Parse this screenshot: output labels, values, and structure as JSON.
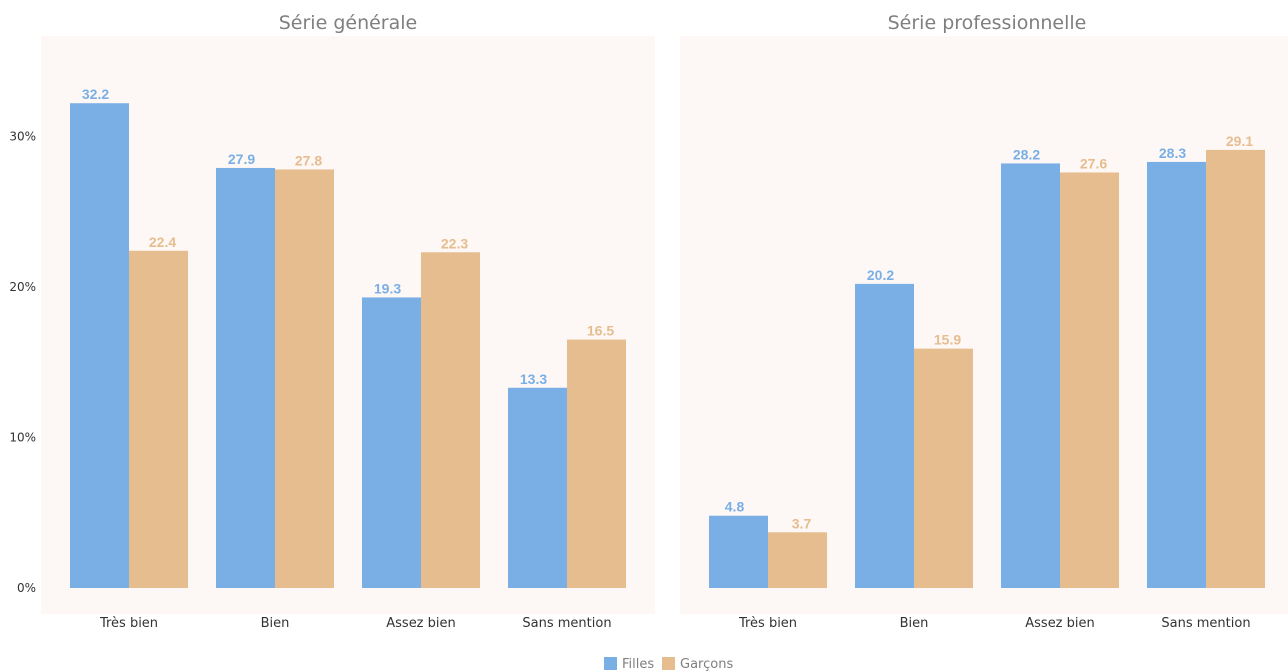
{
  "colors": {
    "Filles": "#7aafe6",
    "Garçons": "#e6bd8f",
    "panel_background": "#fdf8f5",
    "title_text": "#7f7f7f",
    "axis_text": "#333333"
  },
  "legend": {
    "position": "bottom-center",
    "items": [
      "Filles",
      "Garçons"
    ]
  },
  "chart_data": [
    {
      "type": "bar",
      "title": "Série générale",
      "categories": [
        "Très bien",
        "Bien",
        "Assez bien",
        "Sans mention"
      ],
      "series": [
        {
          "name": "Filles",
          "values": [
            32.2,
            27.9,
            19.3,
            13.3
          ]
        },
        {
          "name": "Garçons",
          "values": [
            22.4,
            27.8,
            22.3,
            16.5
          ]
        }
      ],
      "ylim": [
        0,
        36
      ],
      "yticks": [
        0,
        10,
        20,
        30
      ],
      "ytick_labels": [
        "0%",
        "10%",
        "20%",
        "30%"
      ],
      "show_yticks": true,
      "grid": false
    },
    {
      "type": "bar",
      "title": "Série professionnelle",
      "categories": [
        "Très bien",
        "Bien",
        "Assez bien",
        "Sans mention"
      ],
      "series": [
        {
          "name": "Filles",
          "values": [
            4.8,
            20.2,
            28.2,
            28.3
          ]
        },
        {
          "name": "Garçons",
          "values": [
            3.7,
            15.9,
            27.6,
            29.1
          ]
        }
      ],
      "ylim": [
        0,
        36
      ],
      "yticks": [
        0,
        10,
        20,
        30
      ],
      "ytick_labels": [
        "0%",
        "10%",
        "20%",
        "30%"
      ],
      "show_yticks": false,
      "grid": false
    }
  ]
}
